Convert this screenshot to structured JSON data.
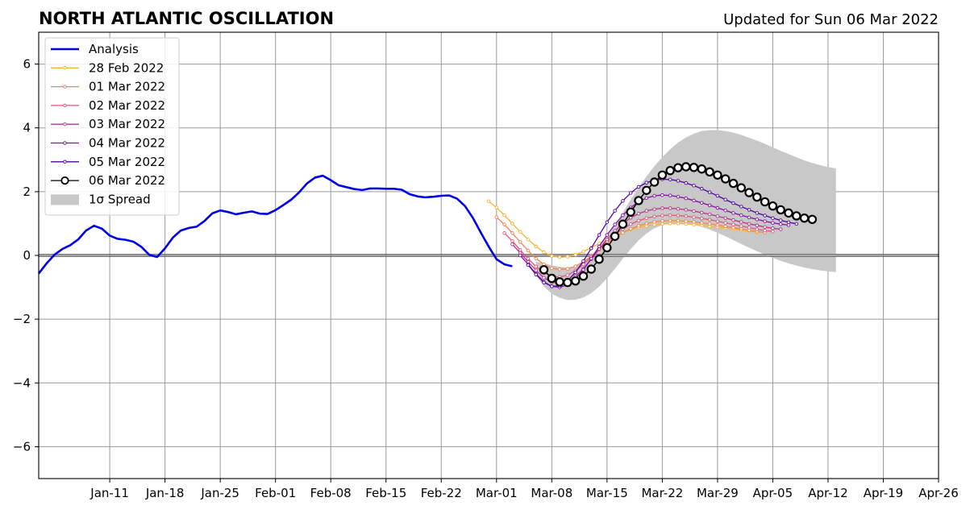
{
  "header": {
    "title": "NORTH ATLANTIC OSCILLATION",
    "subtitle": "Updated for Sun 06 Mar 2022"
  },
  "chart_data": {
    "type": "line",
    "title": "NORTH ATLANTIC OSCILLATION",
    "xlabel": "",
    "ylabel": "",
    "xlim": [
      "2022-01-02",
      "2022-04-26"
    ],
    "ylim": [
      -7,
      7
    ],
    "grid": true,
    "legend_position": "top-left",
    "x_ticks": [
      {
        "date": "2022-01-11",
        "label": "Jan-11"
      },
      {
        "date": "2022-01-18",
        "label": "Jan-18"
      },
      {
        "date": "2022-01-25",
        "label": "Jan-25"
      },
      {
        "date": "2022-02-01",
        "label": "Feb-01"
      },
      {
        "date": "2022-02-08",
        "label": "Feb-08"
      },
      {
        "date": "2022-02-15",
        "label": "Feb-15"
      },
      {
        "date": "2022-02-22",
        "label": "Feb-22"
      },
      {
        "date": "2022-03-01",
        "label": "Mar-01"
      },
      {
        "date": "2022-03-08",
        "label": "Mar-08"
      },
      {
        "date": "2022-03-15",
        "label": "Mar-15"
      },
      {
        "date": "2022-03-22",
        "label": "Mar-22"
      },
      {
        "date": "2022-03-29",
        "label": "Mar-29"
      },
      {
        "date": "2022-04-05",
        "label": "Apr-05"
      },
      {
        "date": "2022-04-12",
        "label": "Apr-12"
      },
      {
        "date": "2022-04-19",
        "label": "Apr-19"
      },
      {
        "date": "2022-04-26",
        "label": "Apr-26"
      }
    ],
    "y_ticks": [
      {
        "value": 6,
        "label": "6"
      },
      {
        "value": 4,
        "label": "4"
      },
      {
        "value": 2,
        "label": "2"
      },
      {
        "value": 0,
        "label": "0"
      },
      {
        "value": -2,
        "label": "−2"
      },
      {
        "value": -4,
        "label": "−4"
      },
      {
        "value": -6,
        "label": "−6"
      }
    ],
    "analysis": {
      "name": "Analysis",
      "color": "#0000e6",
      "points": [
        [
          "2022-01-02",
          -0.57
        ],
        [
          "2022-01-03",
          -0.25
        ],
        [
          "2022-01-04",
          0.02
        ],
        [
          "2022-01-05",
          0.2
        ],
        [
          "2022-01-06",
          0.32
        ],
        [
          "2022-01-07",
          0.5
        ],
        [
          "2022-01-08",
          0.78
        ],
        [
          "2022-01-09",
          0.93
        ],
        [
          "2022-01-10",
          0.84
        ],
        [
          "2022-01-11",
          0.62
        ],
        [
          "2022-01-12",
          0.52
        ],
        [
          "2022-01-13",
          0.49
        ],
        [
          "2022-01-14",
          0.43
        ],
        [
          "2022-01-15",
          0.27
        ],
        [
          "2022-01-16",
          0.02
        ],
        [
          "2022-01-17",
          -0.05
        ],
        [
          "2022-01-18",
          0.22
        ],
        [
          "2022-01-19",
          0.56
        ],
        [
          "2022-01-20",
          0.78
        ],
        [
          "2022-01-21",
          0.86
        ],
        [
          "2022-01-22",
          0.9
        ],
        [
          "2022-01-23",
          1.08
        ],
        [
          "2022-01-24",
          1.32
        ],
        [
          "2022-01-25",
          1.41
        ],
        [
          "2022-01-26",
          1.36
        ],
        [
          "2022-01-27",
          1.29
        ],
        [
          "2022-01-28",
          1.34
        ],
        [
          "2022-01-29",
          1.38
        ],
        [
          "2022-01-30",
          1.31
        ],
        [
          "2022-01-31",
          1.3
        ],
        [
          "2022-02-01",
          1.42
        ],
        [
          "2022-02-02",
          1.58
        ],
        [
          "2022-02-03",
          1.75
        ],
        [
          "2022-02-04",
          1.98
        ],
        [
          "2022-02-05",
          2.26
        ],
        [
          "2022-02-06",
          2.44
        ],
        [
          "2022-02-07",
          2.5
        ],
        [
          "2022-02-08",
          2.36
        ],
        [
          "2022-02-09",
          2.2
        ],
        [
          "2022-02-10",
          2.14
        ],
        [
          "2022-02-11",
          2.08
        ],
        [
          "2022-02-12",
          2.05
        ],
        [
          "2022-02-13",
          2.1
        ],
        [
          "2022-02-14",
          2.1
        ],
        [
          "2022-02-15",
          2.09
        ],
        [
          "2022-02-16",
          2.09
        ],
        [
          "2022-02-17",
          2.06
        ],
        [
          "2022-02-18",
          1.92
        ],
        [
          "2022-02-19",
          1.85
        ],
        [
          "2022-02-20",
          1.82
        ],
        [
          "2022-02-21",
          1.84
        ],
        [
          "2022-02-22",
          1.87
        ],
        [
          "2022-02-23",
          1.88
        ],
        [
          "2022-02-24",
          1.78
        ],
        [
          "2022-02-25",
          1.55
        ],
        [
          "2022-02-26",
          1.18
        ],
        [
          "2022-02-27",
          0.72
        ],
        [
          "2022-02-28",
          0.28
        ],
        [
          "2022-03-01",
          -0.12
        ],
        [
          "2022-03-02",
          -0.28
        ],
        [
          "2022-03-03",
          -0.34
        ]
      ]
    },
    "forecasts": [
      {
        "name": "28 Feb 2022",
        "color": "#fbb32f",
        "start": "2022-02-28",
        "values": [
          1.7,
          1.5,
          1.26,
          1.0,
          0.74,
          0.5,
          0.28,
          0.1,
          -0.02,
          -0.06,
          -0.04,
          0.02,
          0.12,
          0.24,
          0.37,
          0.5,
          0.62,
          0.72,
          0.81,
          0.88,
          0.93,
          0.97,
          0.99,
          1.0,
          1.0,
          0.99,
          0.97,
          0.95,
          0.92,
          0.89,
          0.86,
          0.83,
          0.79,
          0.76,
          0.73
        ]
      },
      {
        "name": "01 Mar 2022",
        "color": "#f2844b",
        "start": "2022-03-01",
        "values": [
          1.2,
          0.97,
          0.7,
          0.42,
          0.15,
          -0.1,
          -0.28,
          -0.4,
          -0.44,
          -0.42,
          -0.34,
          -0.2,
          -0.02,
          0.18,
          0.38,
          0.56,
          0.71,
          0.83,
          0.93,
          1.0,
          1.05,
          1.08,
          1.09,
          1.09,
          1.07,
          1.05,
          1.02,
          0.99,
          0.95,
          0.91,
          0.87,
          0.83,
          0.79,
          0.75,
          0.72
        ]
      },
      {
        "name": "02 Mar 2022",
        "color": "#e0567a",
        "start": "2022-03-02",
        "values": [
          0.7,
          0.45,
          0.17,
          -0.1,
          -0.35,
          -0.55,
          -0.66,
          -0.68,
          -0.62,
          -0.48,
          -0.28,
          -0.05,
          0.2,
          0.44,
          0.65,
          0.83,
          0.98,
          1.09,
          1.17,
          1.22,
          1.25,
          1.26,
          1.25,
          1.23,
          1.2,
          1.16,
          1.12,
          1.07,
          1.02,
          0.97,
          0.92,
          0.87,
          0.82,
          0.78,
          0.75
        ]
      },
      {
        "name": "03 Mar 2022",
        "color": "#b83289",
        "start": "2022-03-03",
        "values": [
          0.35,
          0.08,
          -0.2,
          -0.47,
          -0.7,
          -0.84,
          -0.88,
          -0.82,
          -0.66,
          -0.42,
          -0.12,
          0.2,
          0.5,
          0.77,
          1.0,
          1.18,
          1.31,
          1.4,
          1.45,
          1.48,
          1.48,
          1.46,
          1.43,
          1.39,
          1.34,
          1.29,
          1.23,
          1.17,
          1.11,
          1.05,
          0.99,
          0.94,
          0.89,
          0.85,
          0.82
        ]
      },
      {
        "name": "04 Mar 2022",
        "color": "#8b0aa5",
        "start": "2022-03-04",
        "values": [
          0.0,
          -0.28,
          -0.58,
          -0.83,
          -0.97,
          -1.0,
          -0.92,
          -0.73,
          -0.45,
          -0.1,
          0.28,
          0.64,
          0.97,
          1.26,
          1.5,
          1.68,
          1.8,
          1.87,
          1.89,
          1.88,
          1.84,
          1.79,
          1.72,
          1.65,
          1.57,
          1.49,
          1.41,
          1.33,
          1.26,
          1.19,
          1.13,
          1.07,
          1.02,
          0.98,
          0.95
        ]
      },
      {
        "name": "05 Mar 2022",
        "color": "#5302a3",
        "start": "2022-03-05",
        "values": [
          -0.3,
          -0.6,
          -0.85,
          -0.97,
          -0.95,
          -0.8,
          -0.53,
          -0.18,
          0.22,
          0.64,
          1.04,
          1.4,
          1.71,
          1.96,
          2.15,
          2.28,
          2.36,
          2.39,
          2.38,
          2.34,
          2.27,
          2.19,
          2.09,
          1.98,
          1.87,
          1.75,
          1.64,
          1.53,
          1.43,
          1.33,
          1.25,
          1.17,
          1.1,
          1.04,
          0.99
        ]
      }
    ],
    "main_forecast": {
      "name": "06 Mar 2022",
      "color": "#000000",
      "marker_fill": "#ffffff",
      "start": "2022-03-07",
      "values": [
        -0.45,
        -0.72,
        -0.83,
        -0.85,
        -0.8,
        -0.65,
        -0.43,
        -0.12,
        0.24,
        0.6,
        0.98,
        1.36,
        1.72,
        2.04,
        2.3,
        2.52,
        2.66,
        2.75,
        2.78,
        2.76,
        2.71,
        2.62,
        2.52,
        2.4,
        2.26,
        2.12,
        1.97,
        1.83,
        1.68,
        1.55,
        1.43,
        1.33,
        1.24,
        1.17,
        1.13
      ]
    },
    "spread": {
      "name": "1σ Spread",
      "color": "#c8c8c8",
      "start": "2022-03-06",
      "upper": [
        -0.2,
        -0.25,
        -0.31,
        -0.36,
        -0.38,
        -0.34,
        -0.22,
        -0.02,
        0.25,
        0.58,
        0.95,
        1.35,
        1.75,
        2.13,
        2.48,
        2.8,
        3.08,
        3.33,
        3.54,
        3.7,
        3.82,
        3.9,
        3.93,
        3.93,
        3.9,
        3.85,
        3.78,
        3.69,
        3.6,
        3.5,
        3.39,
        3.28,
        3.18,
        3.08,
        2.98,
        2.9,
        2.83,
        2.77,
        2.73
      ],
      "lower": [
        -0.6,
        -0.98,
        -1.2,
        -1.33,
        -1.4,
        -1.39,
        -1.32,
        -1.18,
        -0.98,
        -0.72,
        -0.42,
        -0.1,
        0.2,
        0.47,
        0.69,
        0.85,
        0.95,
        1.0,
        1.02,
        1.0,
        0.96,
        0.9,
        0.81,
        0.71,
        0.6,
        0.48,
        0.36,
        0.24,
        0.13,
        0.02,
        -0.08,
        -0.17,
        -0.25,
        -0.32,
        -0.38,
        -0.43,
        -0.47,
        -0.5,
        -0.52
      ]
    },
    "legend": [
      {
        "label": "Analysis"
      },
      {
        "label": "28 Feb 2022"
      },
      {
        "label": "01 Mar 2022"
      },
      {
        "label": "02 Mar 2022"
      },
      {
        "label": "03 Mar 2022"
      },
      {
        "label": "04 Mar 2022"
      },
      {
        "label": "05 Mar 2022"
      },
      {
        "label": "06 Mar 2022"
      },
      {
        "label": "1σ Spread"
      }
    ]
  }
}
